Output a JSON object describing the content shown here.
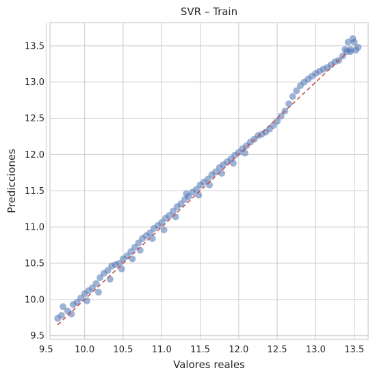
{
  "chart_data": {
    "type": "scatter",
    "title": "SVR – Train",
    "xlabel": "Valores reales",
    "ylabel": "Predicciones",
    "xlim": [
      9.55,
      13.68
    ],
    "ylim": [
      9.45,
      13.82
    ],
    "xticks": [
      9.5,
      10.0,
      10.5,
      11.0,
      11.5,
      12.0,
      12.5,
      13.0,
      13.5
    ],
    "yticks": [
      9.5,
      10.0,
      10.5,
      11.0,
      11.5,
      12.0,
      12.5,
      13.0,
      13.5
    ],
    "xtick_labels": [
      "9.5",
      "10.0",
      "10.5",
      "11.0",
      "11.5",
      "12.0",
      "12.5",
      "13.0",
      "13.5"
    ],
    "ytick_labels": [
      "9.5",
      "10.0",
      "10.5",
      "11.0",
      "11.5",
      "12.0",
      "12.5",
      "13.0",
      "13.5"
    ],
    "grid": true,
    "point_color": "#4c72b0",
    "reference_line": {
      "style": "dashed",
      "color": "#c44e52",
      "x": [
        9.65,
        13.4
      ],
      "y": [
        9.65,
        13.4
      ]
    },
    "series": [
      {
        "points": [
          [
            9.65,
            9.74
          ],
          [
            9.7,
            9.78
          ],
          [
            9.72,
            9.9
          ],
          [
            9.78,
            9.84
          ],
          [
            9.83,
            9.8
          ],
          [
            9.85,
            9.93
          ],
          [
            9.9,
            9.96
          ],
          [
            9.95,
            10.02
          ],
          [
            10.0,
            10.08
          ],
          [
            10.03,
            9.98
          ],
          [
            10.05,
            10.12
          ],
          [
            10.1,
            10.16
          ],
          [
            10.15,
            10.22
          ],
          [
            10.18,
            10.1
          ],
          [
            10.2,
            10.3
          ],
          [
            10.25,
            10.36
          ],
          [
            10.3,
            10.4
          ],
          [
            10.33,
            10.28
          ],
          [
            10.35,
            10.46
          ],
          [
            10.4,
            10.48
          ],
          [
            10.45,
            10.5
          ],
          [
            10.48,
            10.42
          ],
          [
            10.5,
            10.56
          ],
          [
            10.55,
            10.6
          ],
          [
            10.6,
            10.66
          ],
          [
            10.62,
            10.56
          ],
          [
            10.65,
            10.72
          ],
          [
            10.7,
            10.78
          ],
          [
            10.72,
            10.68
          ],
          [
            10.75,
            10.84
          ],
          [
            10.8,
            10.88
          ],
          [
            10.85,
            10.92
          ],
          [
            10.88,
            10.84
          ],
          [
            10.9,
            10.98
          ],
          [
            10.95,
            11.02
          ],
          [
            11.0,
            11.06
          ],
          [
            11.03,
            10.96
          ],
          [
            11.05,
            11.12
          ],
          [
            11.1,
            11.16
          ],
          [
            11.15,
            11.22
          ],
          [
            11.18,
            11.14
          ],
          [
            11.2,
            11.28
          ],
          [
            11.25,
            11.32
          ],
          [
            11.3,
            11.38
          ],
          [
            11.32,
            11.46
          ],
          [
            11.35,
            11.42
          ],
          [
            11.4,
            11.48
          ],
          [
            11.45,
            11.52
          ],
          [
            11.48,
            11.44
          ],
          [
            11.5,
            11.58
          ],
          [
            11.55,
            11.62
          ],
          [
            11.6,
            11.66
          ],
          [
            11.62,
            11.58
          ],
          [
            11.65,
            11.72
          ],
          [
            11.7,
            11.76
          ],
          [
            11.75,
            11.82
          ],
          [
            11.78,
            11.74
          ],
          [
            11.8,
            11.86
          ],
          [
            11.85,
            11.9
          ],
          [
            11.9,
            11.94
          ],
          [
            11.93,
            11.88
          ],
          [
            11.95,
            11.99
          ],
          [
            12.0,
            12.03
          ],
          [
            12.05,
            12.08
          ],
          [
            12.08,
            12.02
          ],
          [
            12.1,
            12.12
          ],
          [
            12.15,
            12.17
          ],
          [
            12.2,
            12.21
          ],
          [
            12.25,
            12.26
          ],
          [
            12.3,
            12.28
          ],
          [
            12.35,
            12.31
          ],
          [
            12.4,
            12.35
          ],
          [
            12.45,
            12.4
          ],
          [
            12.5,
            12.46
          ],
          [
            12.55,
            12.53
          ],
          [
            12.6,
            12.6
          ],
          [
            12.65,
            12.7
          ],
          [
            12.7,
            12.8
          ],
          [
            12.75,
            12.88
          ],
          [
            12.8,
            12.95
          ],
          [
            12.85,
            13.0
          ],
          [
            12.9,
            13.04
          ],
          [
            12.95,
            13.08
          ],
          [
            13.0,
            13.12
          ],
          [
            13.05,
            13.15
          ],
          [
            13.1,
            13.18
          ],
          [
            13.15,
            13.2
          ],
          [
            13.2,
            13.24
          ],
          [
            13.25,
            13.28
          ],
          [
            13.3,
            13.3
          ],
          [
            13.35,
            13.36
          ],
          [
            13.4,
            13.42
          ],
          [
            13.45,
            13.45
          ],
          [
            13.48,
            13.6
          ],
          [
            13.5,
            13.55
          ],
          [
            13.52,
            13.44
          ],
          [
            13.55,
            13.48
          ],
          [
            13.45,
            13.42
          ],
          [
            13.42,
            13.55
          ],
          [
            13.38,
            13.45
          ]
        ]
      }
    ]
  }
}
